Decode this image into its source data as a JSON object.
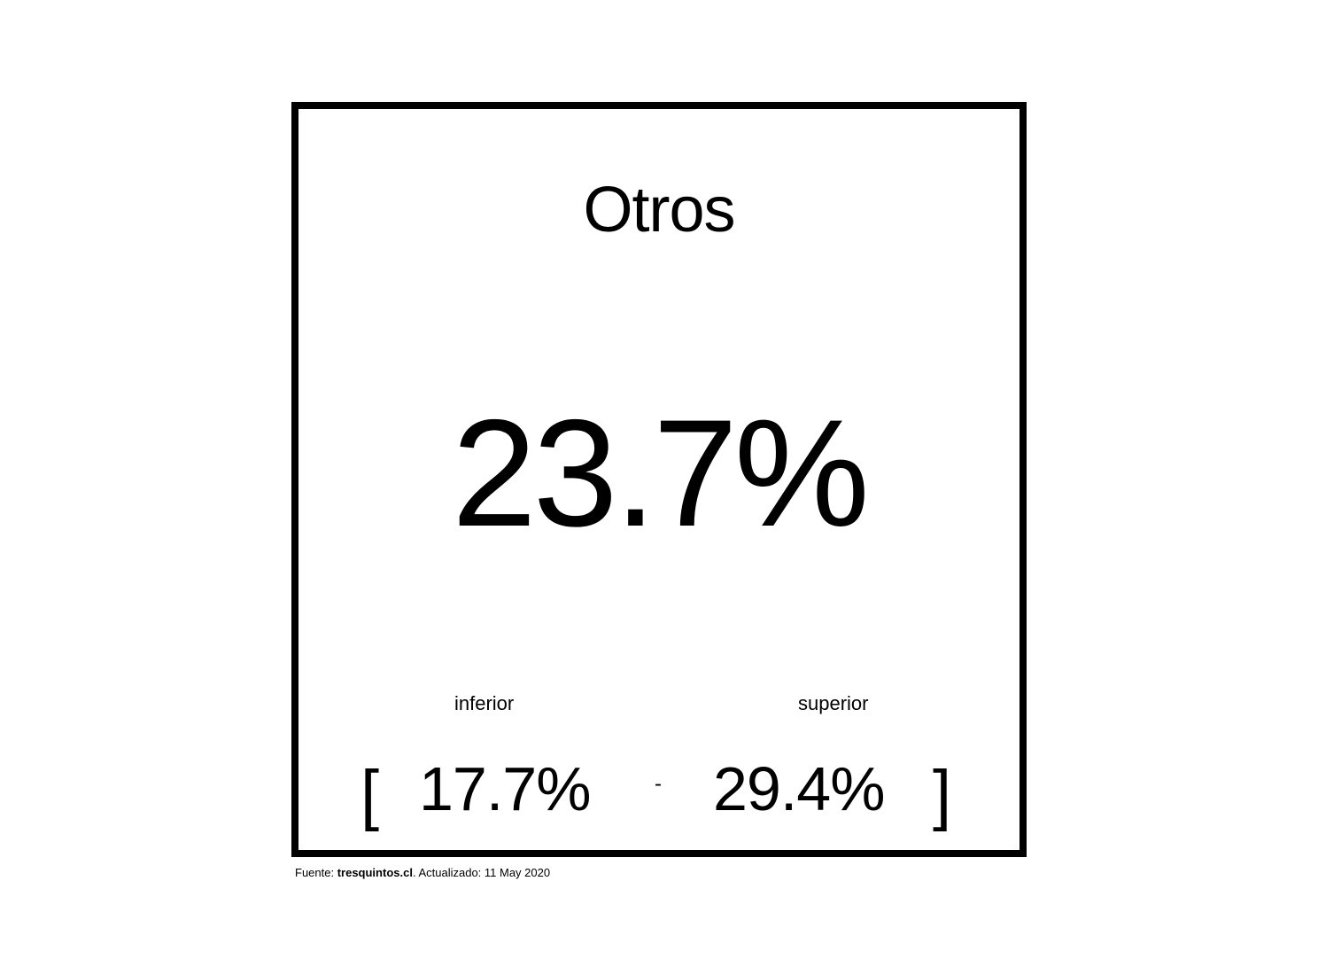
{
  "chart_data": {
    "type": "table",
    "title": "Otros",
    "value": "23.7%",
    "interval": {
      "lower_label": "inferior",
      "lower": "17.7%",
      "separator": "-",
      "upper_label": "superior",
      "upper": "29.4%",
      "open_bracket": "[",
      "close_bracket": "]"
    }
  },
  "footer": {
    "source_prefix": "Fuente: ",
    "source_name": "tresquintos.cl",
    "updated_text": ". Actualizado: 11 May 2020"
  },
  "colors": {
    "border": "#000000",
    "text": "#000000",
    "background": "#ffffff"
  }
}
